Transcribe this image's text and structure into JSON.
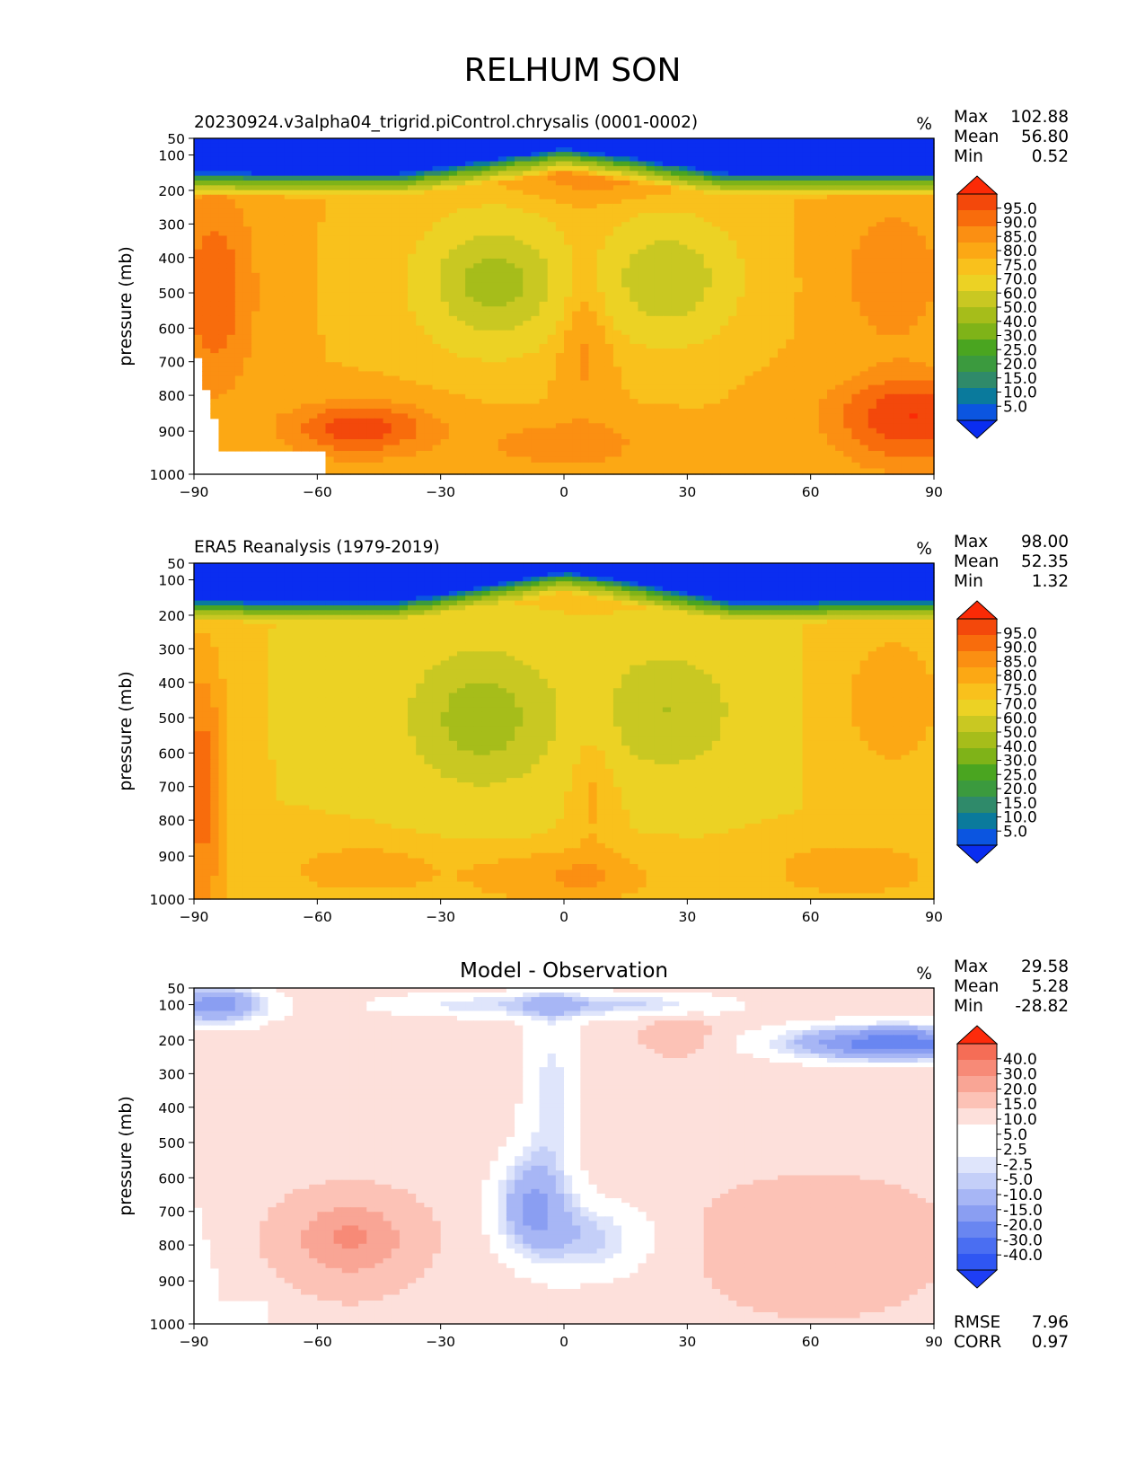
{
  "title": "RELHUM SON",
  "colors": {
    "abs_levels": [
      "#0a2df0",
      "#0b55e0",
      "#0a7a9c",
      "#2f8a6a",
      "#3b9a3e",
      "#4aa520",
      "#7fb318",
      "#a6bd1a",
      "#c9c822",
      "#ecd224",
      "#f9c11c",
      "#fca814",
      "#fb8f12",
      "#f86c0c",
      "#f3480b",
      "#fb2a06"
    ],
    "diff_levels": [
      "#1e3ef5",
      "#2f56f3",
      "#4a6ef2",
      "#6986f1",
      "#8a9ef2",
      "#a7b6f5",
      "#c4cff8",
      "#dfe5fb",
      "#ffffff",
      "#ffffff",
      "#fde0db",
      "#fcc2b6",
      "#f9a595",
      "#f78a77",
      "#f56d56",
      "#f34d35",
      "#fd2b0b"
    ]
  },
  "chart_data": [
    {
      "type": "heatmap",
      "title": "20230924.v3alpha04_trigrid.piControl.chrysalis (0001-0002)",
      "units": "%",
      "ylabel": "pressure (mb)",
      "xlim": [
        -90,
        90
      ],
      "ylim": [
        1000,
        50
      ],
      "xticks": [
        "−90",
        "−60",
        "−30",
        "0",
        "30",
        "60",
        "90"
      ],
      "yticks": [
        "50",
        "100",
        "200",
        "300",
        "400",
        "500",
        "600",
        "700",
        "800",
        "900",
        "1000"
      ],
      "stats": [
        {
          "label": "Max",
          "value": "102.88"
        },
        {
          "label": "Mean",
          "value": "56.80"
        },
        {
          "label": "Min",
          "value": "0.52"
        }
      ],
      "colorbar_levels": [
        "95.0",
        "90.0",
        "85.0",
        "80.0",
        "75.0",
        "70.0",
        "60.0",
        "50.0",
        "40.0",
        "30.0",
        "25.0",
        "20.0",
        "15.0",
        "10.0",
        "5.0"
      ],
      "field": "model"
    },
    {
      "type": "heatmap",
      "title": "ERA5 Reanalysis (1979-2019)",
      "units": "%",
      "ylabel": "pressure (mb)",
      "xlim": [
        -90,
        90
      ],
      "ylim": [
        1000,
        50
      ],
      "xticks": [
        "−90",
        "−60",
        "−30",
        "0",
        "30",
        "60",
        "90"
      ],
      "yticks": [
        "50",
        "100",
        "200",
        "300",
        "400",
        "500",
        "600",
        "700",
        "800",
        "900",
        "1000"
      ],
      "stats": [
        {
          "label": "Max",
          "value": "98.00"
        },
        {
          "label": "Mean",
          "value": "52.35"
        },
        {
          "label": "Min",
          "value": "1.32"
        }
      ],
      "colorbar_levels": [
        "95.0",
        "90.0",
        "85.0",
        "80.0",
        "75.0",
        "70.0",
        "60.0",
        "50.0",
        "40.0",
        "30.0",
        "25.0",
        "20.0",
        "15.0",
        "10.0",
        "5.0"
      ],
      "field": "obs"
    },
    {
      "type": "heatmap",
      "title": "Model - Observation",
      "units": "%",
      "ylabel": "pressure (mb)",
      "xlim": [
        -90,
        90
      ],
      "ylim": [
        1000,
        50
      ],
      "xticks": [
        "−90",
        "−60",
        "−30",
        "0",
        "30",
        "60",
        "90"
      ],
      "yticks": [
        "50",
        "100",
        "200",
        "300",
        "400",
        "500",
        "600",
        "700",
        "800",
        "900",
        "1000"
      ],
      "stats": [
        {
          "label": "Max",
          "value": "29.58"
        },
        {
          "label": "Mean",
          "value": "5.28"
        },
        {
          "label": "Min",
          "value": "-28.82"
        }
      ],
      "colorbar_levels": [
        "40.0",
        "30.0",
        "20.0",
        "15.0",
        "10.0",
        "5.0",
        "2.5",
        "-2.5",
        "-5.0",
        "-10.0",
        "-15.0",
        "-20.0",
        "-30.0",
        "-40.0"
      ],
      "field": "diff",
      "metrics": [
        {
          "label": "RMSE",
          "value": "7.96"
        },
        {
          "label": "CORR",
          "value": "0.97"
        }
      ]
    }
  ]
}
